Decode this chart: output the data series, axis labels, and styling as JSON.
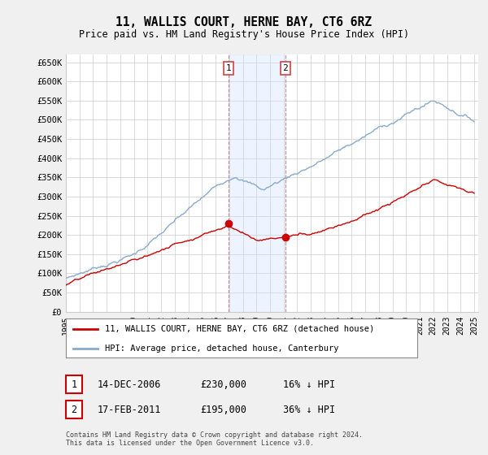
{
  "title": "11, WALLIS COURT, HERNE BAY, CT6 6RZ",
  "subtitle": "Price paid vs. HM Land Registry's House Price Index (HPI)",
  "ylabel_ticks": [
    "£0",
    "£50K",
    "£100K",
    "£150K",
    "£200K",
    "£250K",
    "£300K",
    "£350K",
    "£400K",
    "£450K",
    "£500K",
    "£550K",
    "£600K",
    "£650K"
  ],
  "ytick_values": [
    0,
    50000,
    100000,
    150000,
    200000,
    250000,
    300000,
    350000,
    400000,
    450000,
    500000,
    550000,
    600000,
    650000
  ],
  "ylim": [
    0,
    670000
  ],
  "transaction1": {
    "date": "14-DEC-2006",
    "price": 230000,
    "label": "1",
    "hpi_diff": "16% ↓ HPI",
    "year": 2006.95
  },
  "transaction2": {
    "date": "17-FEB-2011",
    "price": 195000,
    "label": "2",
    "hpi_diff": "36% ↓ HPI",
    "year": 2011.12
  },
  "legend_property": "11, WALLIS COURT, HERNE BAY, CT6 6RZ (detached house)",
  "legend_hpi": "HPI: Average price, detached house, Canterbury",
  "footnote": "Contains HM Land Registry data © Crown copyright and database right 2024.\nThis data is licensed under the Open Government Licence v3.0.",
  "property_color": "#cc0000",
  "hpi_color": "#88aacc",
  "highlight_color": "#ddeeff",
  "background_color": "#f0f0f0",
  "plot_bg_color": "#ffffff",
  "grid_color": "#cccccc"
}
